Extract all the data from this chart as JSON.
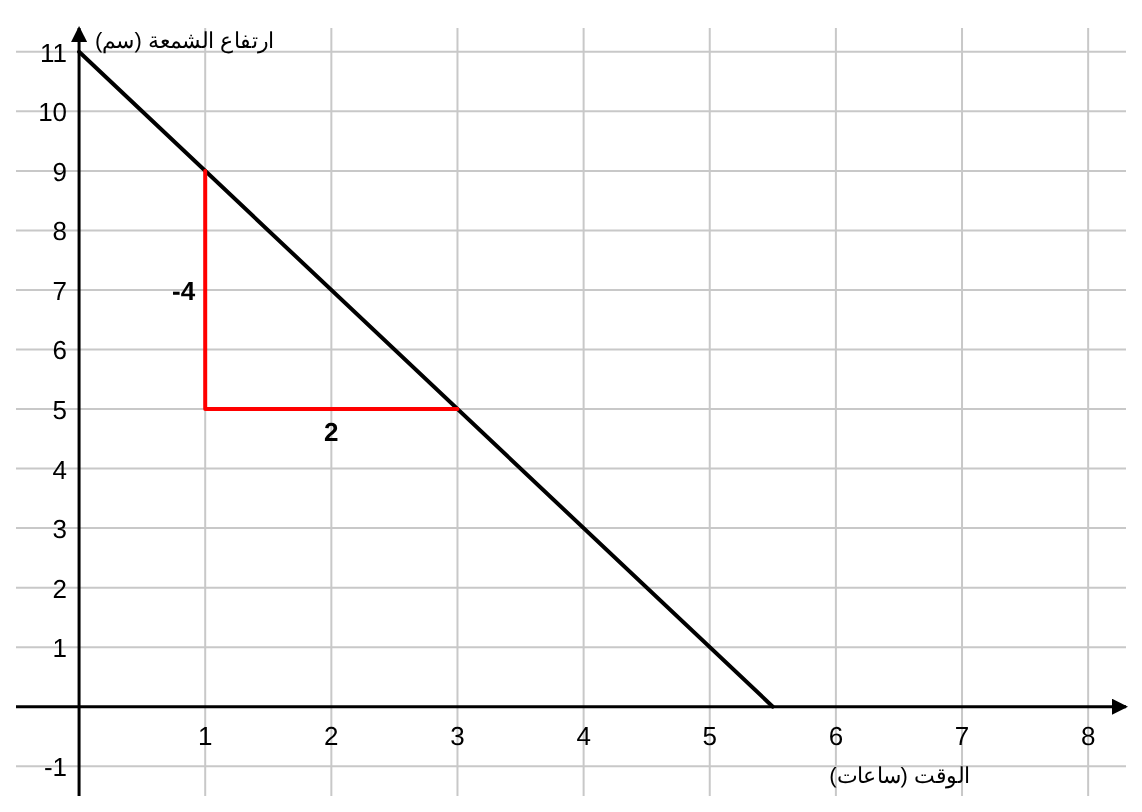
{
  "chart_data": {
    "type": "line",
    "xlabel": "الوقت (ساعات)",
    "ylabel": "ارتفاع الشمعة (سم)",
    "series": [
      {
        "x": [
          0,
          5.5
        ],
        "values": [
          11,
          0
        ],
        "color": "#000000"
      },
      {
        "x": [
          1,
          1,
          3
        ],
        "values": [
          9,
          5,
          5
        ],
        "color": "#ff0000"
      }
    ],
    "xlim": [
      -0.5,
      8.3
    ],
    "ylim": [
      -1.5,
      11.4
    ],
    "xticks": [
      1,
      2,
      3,
      4,
      5,
      6,
      7,
      8
    ],
    "yticks": [
      -1,
      1,
      2,
      3,
      4,
      5,
      6,
      7,
      8,
      9,
      10,
      11
    ],
    "grid": true,
    "marker": "none",
    "line_style": "solid",
    "annotations": [
      "-4",
      "2"
    ]
  }
}
